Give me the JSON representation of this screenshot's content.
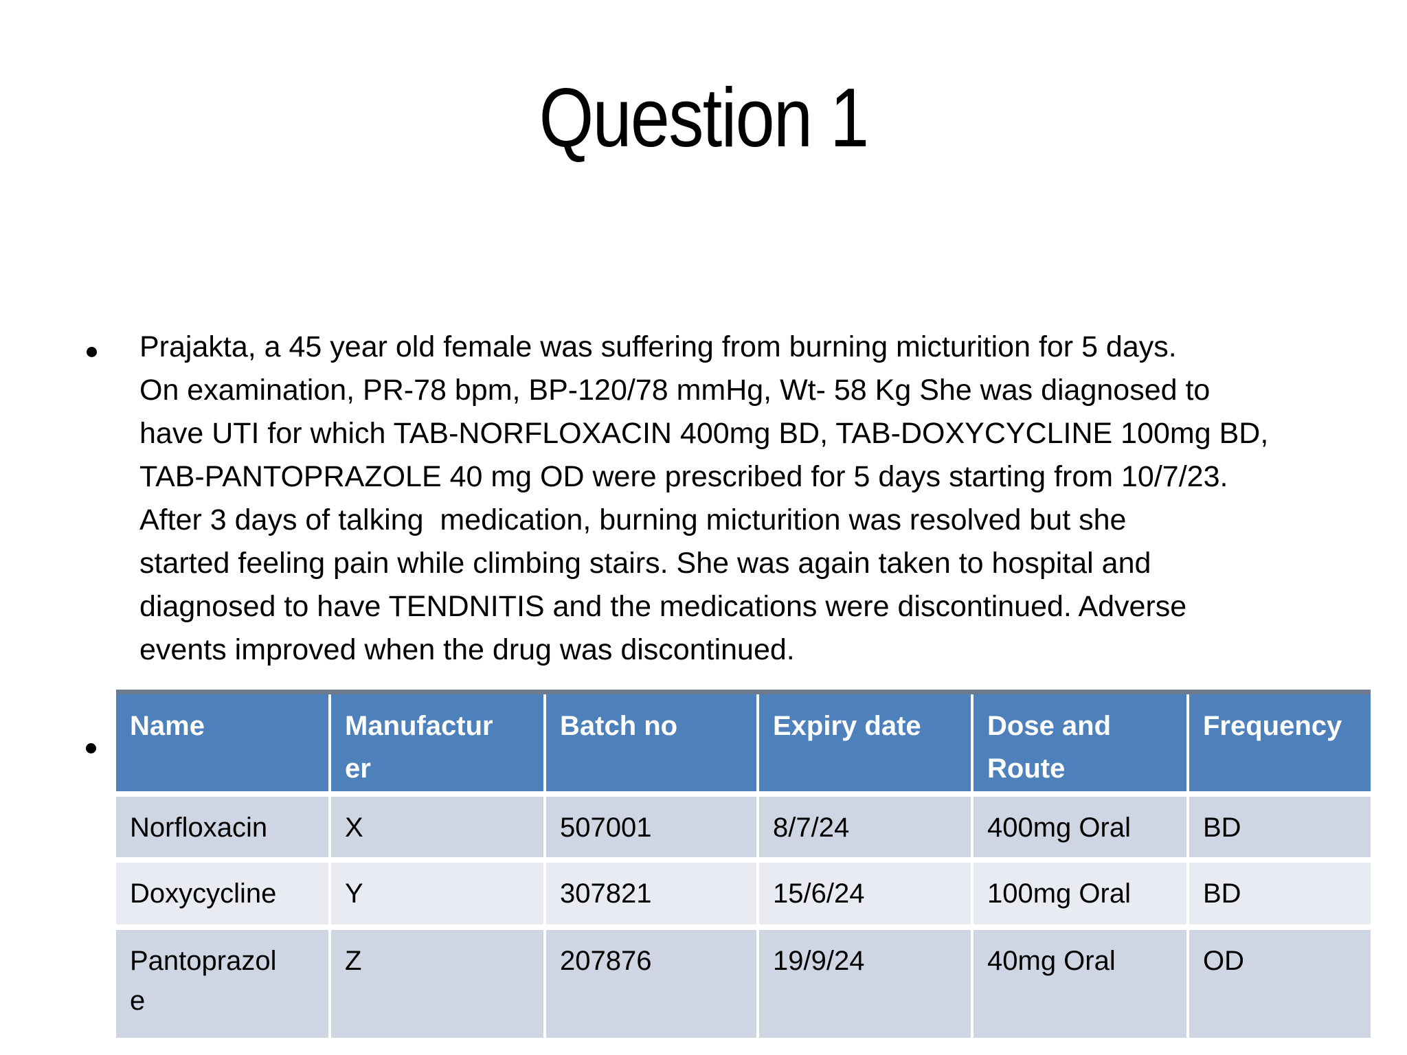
{
  "slide": {
    "title": "Question 1",
    "case_study": {
      "text": "Prajakta, a 45 year old female was suffering from burning micturition for 5 days.\nOn examination, PR-78 bpm, BP-120/78 mmHg, Wt- 58 Kg She was diagnosed to\nhave UTI for which TAB-NORFLOXACIN 400mg BD, TAB-DOXYCYCLINE 100mg BD,\nTAB-PANTOPRAZOLE 40 mg OD were prescribed for 5 days starting from 10/7/23.\nAfter 3 days of talking  medication, burning micturition was resolved but she\nstarted feeling pain while climbing stairs. She was again taken to hospital and\ndiagnosed to have TENDNITIS and the medications were discontinued. Adverse\nevents improved when the drug was discontinued."
    },
    "table": {
      "columns": [
        "Name",
        "Manufactur\ner",
        "Batch no",
        "Expiry date",
        "Dose and\nRoute",
        "Frequency"
      ],
      "rows": [
        [
          "Norfloxacin",
          "X",
          "507001",
          "8/7/24",
          "400mg Oral",
          "BD"
        ],
        [
          "Doxycycline",
          "Y",
          "307821",
          "15/6/24",
          "100mg Oral",
          "BD"
        ],
        [
          "Pantoprazol\ne",
          "Z",
          "207876",
          "19/9/24",
          "40mg Oral",
          "OD"
        ]
      ],
      "colors": {
        "header_bg": "#4e80bb",
        "header_text": "#ffffff",
        "row_odd_bg": "#cfd6e3",
        "row_even_bg": "#e9ebf2",
        "header_top_border": "#6b7a8e",
        "slide_bg": "#ffffff",
        "text": "#000000"
      }
    }
  }
}
